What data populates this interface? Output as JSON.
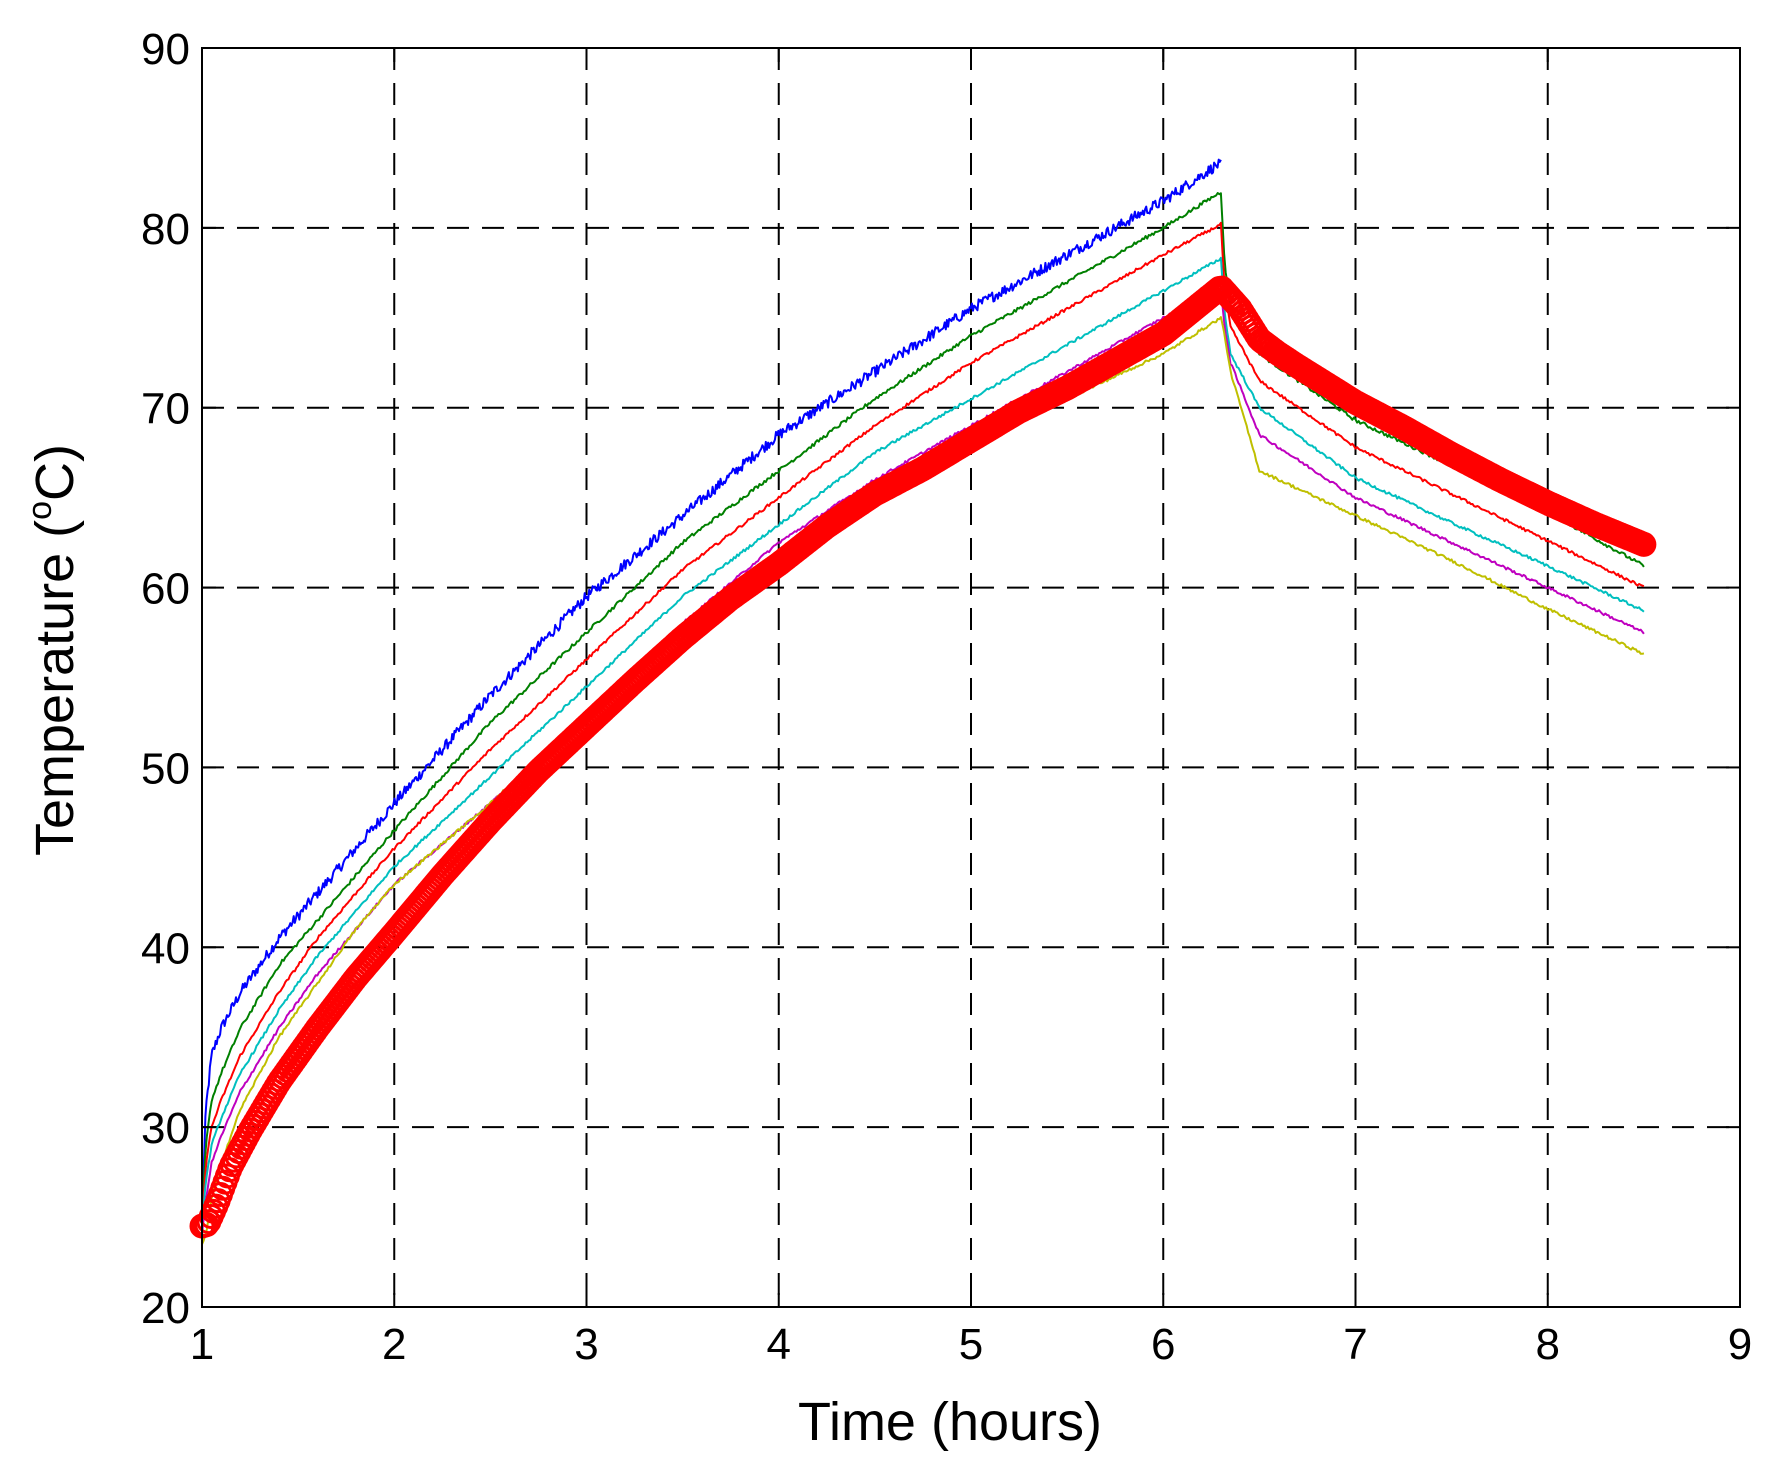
{
  "chart_data": {
    "type": "line",
    "title": "",
    "xlabel": "Time (hours)",
    "ylabel_prefix": "Temperature (",
    "ylabel_sup": "o",
    "ylabel_suffix": "C)",
    "xlim": [
      1,
      9
    ],
    "ylim": [
      20,
      90
    ],
    "xticks": [
      "1",
      "2",
      "3",
      "4",
      "5",
      "6",
      "7",
      "8",
      "9"
    ],
    "yticks": [
      "20",
      "30",
      "40",
      "50",
      "60",
      "70",
      "80",
      "90"
    ],
    "grid": true,
    "legend": "none",
    "series": [
      {
        "color": "#0000ff",
        "style": "line",
        "noise": 0.3,
        "x": [
          1,
          1.02,
          1.05,
          1.1,
          1.2,
          1.4,
          1.6,
          1.8,
          2,
          2.5,
          3,
          3.5,
          4,
          4.5,
          5,
          5.5,
          6,
          6.28,
          6.3
        ],
        "y": [
          25,
          31,
          34,
          35.5,
          37.5,
          40.5,
          43,
          45.5,
          48,
          54,
          59.5,
          64,
          68.5,
          72,
          75.5,
          78.5,
          81.5,
          83.5,
          83.5
        ]
      },
      {
        "color": "#008000",
        "style": "line",
        "noise": 0.1,
        "x": [
          1,
          1.02,
          1.05,
          1.1,
          1.2,
          1.4,
          1.6,
          1.8,
          2,
          2.5,
          3,
          3.5,
          4,
          4.5,
          5,
          5.5,
          6,
          6.3,
          6.32,
          6.35,
          6.5,
          7,
          7.5,
          8,
          8.5
        ],
        "y": [
          25,
          29,
          31.5,
          33,
          35.5,
          39,
          41.5,
          44,
          46.5,
          52.5,
          57.5,
          62.5,
          66.5,
          70.5,
          74,
          77,
          80,
          82,
          78,
          75.5,
          73,
          69.3,
          66.8,
          64.2,
          61.2
        ]
      },
      {
        "color": "#ff0000",
        "style": "line",
        "noise": 0.08,
        "x": [
          1,
          1.02,
          1.05,
          1.1,
          1.2,
          1.4,
          1.6,
          1.8,
          2,
          2.5,
          3,
          3.5,
          4,
          4.5,
          5,
          5.5,
          6,
          6.3,
          6.32,
          6.35,
          6.5,
          7,
          7.5,
          8,
          8.5
        ],
        "y": [
          24.5,
          28,
          30,
          31.5,
          34,
          37.5,
          40.5,
          43,
          45.5,
          51,
          56,
          61,
          65,
          69,
          72.5,
          75.5,
          78.5,
          80.2,
          76.5,
          74.5,
          71.5,
          67.8,
          65.2,
          62.6,
          60
        ]
      },
      {
        "color": "#00bfbf",
        "style": "line",
        "noise": 0.08,
        "x": [
          1,
          1.02,
          1.05,
          1.1,
          1.2,
          1.4,
          1.6,
          1.8,
          2,
          2.5,
          3,
          3.5,
          4,
          4.5,
          5,
          5.5,
          6,
          6.3,
          6.32,
          6.35,
          6.5,
          7,
          7.5,
          8,
          8.5
        ],
        "y": [
          24.5,
          27,
          29,
          30.5,
          33,
          36.5,
          39.5,
          42,
          44.5,
          49.5,
          54.5,
          59.5,
          63.5,
          67.5,
          70.5,
          73.5,
          76.5,
          78.3,
          75.2,
          73,
          70,
          66.1,
          63.6,
          61.2,
          58.7
        ]
      },
      {
        "color": "#bf00bf",
        "style": "line",
        "noise": 0.08,
        "x": [
          1,
          1.02,
          1.05,
          1.1,
          1.2,
          1.4,
          1.6,
          1.8,
          2,
          2.5,
          3,
          3.5,
          4,
          4.5,
          5,
          5.5,
          6,
          6.3,
          6.32,
          6.35,
          6.5,
          7,
          7.5,
          8,
          8.5
        ],
        "y": [
          24,
          26,
          28,
          29.5,
          32,
          35.5,
          38.5,
          41,
          43.5,
          48,
          53,
          58,
          62.5,
          66,
          69,
          72,
          75,
          76.5,
          74.5,
          72.5,
          68.5,
          65,
          62.5,
          60,
          57.5
        ]
      },
      {
        "color": "#bfbf00",
        "style": "line",
        "noise": 0.08,
        "x": [
          1,
          1.02,
          1.05,
          1.1,
          1.2,
          1.4,
          1.6,
          1.8,
          2,
          2.5,
          3,
          3.5,
          4,
          4.5,
          5,
          5.5,
          6,
          6.3,
          6.32,
          6.35,
          6.5,
          7,
          7.5,
          8,
          8.5
        ],
        "y": [
          23.5,
          24,
          26,
          28,
          31,
          35,
          38,
          41,
          43.5,
          48,
          53,
          57.5,
          61.5,
          65,
          68,
          70.5,
          73,
          75,
          74,
          72,
          66.5,
          64,
          61.5,
          58.8,
          56.3
        ]
      },
      {
        "color": "#ff0000",
        "style": "circles",
        "noise": 0,
        "x": [
          1,
          1.03,
          1.08,
          1.15,
          1.25,
          1.4,
          1.6,
          1.8,
          2,
          2.25,
          2.5,
          2.75,
          3,
          3.25,
          3.5,
          3.75,
          4,
          4.25,
          4.5,
          4.75,
          5,
          5.25,
          5.5,
          5.75,
          6,
          6.15,
          6.3,
          6.4,
          6.5,
          6.6,
          6.7,
          6.85,
          7,
          7.25,
          7.5,
          7.75,
          8,
          8.25,
          8.5
        ],
        "y": [
          24.5,
          24.6,
          25.8,
          27.8,
          29.8,
          32.5,
          35.5,
          38.3,
          40.8,
          44,
          47,
          49.8,
          52.3,
          54.8,
          57.2,
          59.4,
          61.3,
          63.4,
          65.2,
          66.6,
          68.2,
          69.8,
          71.1,
          72.6,
          74.1,
          75.4,
          76.7,
          75.5,
          73.8,
          73,
          72.3,
          71.3,
          70.3,
          68.9,
          67.4,
          66,
          64.7,
          63.5,
          62.4
        ]
      }
    ]
  }
}
